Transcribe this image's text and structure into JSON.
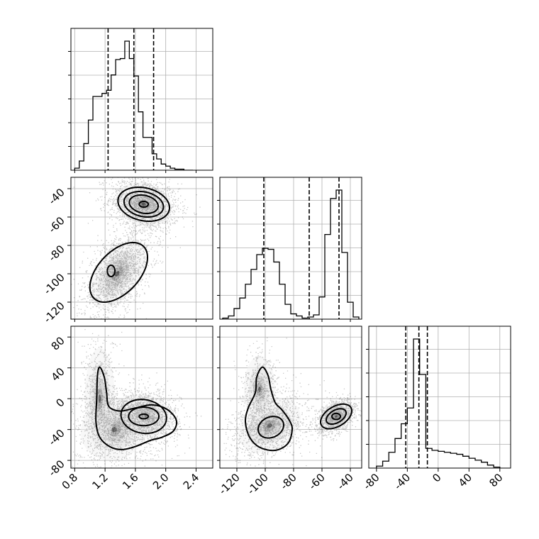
{
  "chart_data": {
    "type": "corner",
    "grid": true,
    "dashed_quantiles": [
      [
        1.24,
        1.58,
        1.84
      ],
      [
        -101,
        -69,
        -48
      ],
      [
        -42,
        -25,
        -14
      ]
    ],
    "ranges": [
      [
        0.75,
        2.62
      ],
      [
        -132,
        -32
      ],
      [
        -90,
        94
      ]
    ],
    "ticks": [
      [
        "0.8",
        "1.2",
        "1.6",
        "2.0",
        "2.4"
      ],
      [
        "-120",
        "-100",
        "-80",
        "-60",
        "-40"
      ],
      [
        "-80",
        "-40",
        "0",
        "40",
        "80"
      ]
    ],
    "histograms": [
      {
        "bin_edges": [
          0.8,
          0.86,
          0.92,
          0.98,
          1.04,
          1.1,
          1.16,
          1.22,
          1.28,
          1.34,
          1.4,
          1.46,
          1.52,
          1.58,
          1.64,
          1.7,
          1.76,
          1.82,
          1.88,
          1.94,
          2.0,
          2.06,
          2.12,
          2.18,
          2.24,
          2.3,
          2.36
        ],
        "counts": [
          2,
          9,
          26,
          49,
          72,
          72,
          75,
          78,
          93,
          108,
          109,
          126,
          109,
          92,
          57,
          32,
          32,
          16,
          11,
          6,
          4,
          2,
          1,
          1,
          0,
          0
        ]
      },
      {
        "bin_edges": [
          -130,
          -126,
          -122,
          -118,
          -114,
          -110,
          -106,
          -102,
          -98,
          -94,
          -90,
          -86,
          -82,
          -78,
          -74,
          -70,
          -66,
          -62,
          -58,
          -54,
          -50,
          -46,
          -42,
          -38,
          -34
        ],
        "counts": [
          1,
          3,
          10,
          20,
          33,
          47,
          61,
          67,
          66,
          54,
          33,
          14,
          5,
          3,
          1,
          2,
          4,
          21,
          80,
          114,
          122,
          63,
          16,
          2
        ]
      },
      {
        "bin_edges": [
          -80,
          -72,
          -64,
          -56,
          -48,
          -40,
          -32,
          -24,
          -16,
          -8,
          0,
          8,
          16,
          24,
          32,
          40,
          48,
          56,
          64,
          72,
          80
        ],
        "counts": [
          2,
          7,
          16,
          30,
          45,
          61,
          131,
          95,
          20,
          18,
          17,
          16,
          15,
          14,
          12,
          10,
          8,
          6,
          3,
          1
        ]
      }
    ],
    "pairs": [
      {
        "x": 0,
        "y": 1,
        "clusters": [
          {
            "cx": 1.71,
            "cy": -51,
            "sx": 0.17,
            "sy": 7,
            "rho": -0.2,
            "n": 1600
          },
          {
            "cx": 1.36,
            "cy": -100,
            "sx": 0.17,
            "sy": 11,
            "rho": 0.5,
            "n": 1600
          }
        ],
        "contours": [
          {
            "cx": 1.71,
            "cy": -51,
            "rx": 0.34,
            "ry": 12,
            "rho": -0.2
          },
          {
            "cx": 1.71,
            "cy": -51,
            "rx": 0.26,
            "ry": 9,
            "rho": -0.2
          },
          {
            "cx": 1.71,
            "cy": -51,
            "rx": 0.19,
            "ry": 6.5,
            "rho": -0.2
          },
          {
            "cx": 1.71,
            "cy": -51,
            "rx": 0.06,
            "ry": 2,
            "rho": 0
          },
          {
            "cx": 1.38,
            "cy": -99,
            "rx": 0.38,
            "ry": 21,
            "rho": 0.5
          },
          {
            "cx": 1.28,
            "cy": -98,
            "rx": 0.05,
            "ry": 4,
            "rho": 0
          }
        ]
      },
      {
        "x": 0,
        "y": 2,
        "clusters": [
          {
            "cx": 1.71,
            "cy": -23,
            "sx": 0.17,
            "sy": 13,
            "rho": -0.1,
            "n": 1500
          },
          {
            "cx": 1.32,
            "cy": -40,
            "sx": 0.2,
            "sy": 18,
            "rho": 0.1,
            "n": 900
          },
          {
            "cx": 1.13,
            "cy": 0,
            "sx": 0.09,
            "sy": 30,
            "rho": 0,
            "n": 700
          }
        ],
        "contours": [
          {
            "cx": 1.71,
            "cy": -23,
            "rx": 0.3,
            "ry": 22,
            "rho": -0.1
          },
          {
            "cx": 1.71,
            "cy": -23,
            "rx": 0.2,
            "ry": 12,
            "rho": 0
          },
          {
            "cx": 1.71,
            "cy": -23,
            "rx": 0.06,
            "ry": 3,
            "rho": 0
          }
        ],
        "outer_contour": [
          [
            1.13,
            41
          ],
          [
            1.19,
            28
          ],
          [
            1.22,
            8
          ],
          [
            1.25,
            -10
          ],
          [
            1.4,
            -16
          ],
          [
            1.6,
            -12
          ],
          [
            1.82,
            -8
          ],
          [
            2.02,
            -14
          ],
          [
            2.14,
            -28
          ],
          [
            2.1,
            -42
          ],
          [
            1.95,
            -50
          ],
          [
            1.8,
            -54
          ],
          [
            1.6,
            -62
          ],
          [
            1.42,
            -66
          ],
          [
            1.26,
            -62
          ],
          [
            1.13,
            -50
          ],
          [
            1.08,
            -30
          ],
          [
            1.09,
            0
          ],
          [
            1.1,
            30
          ]
        ]
      },
      {
        "x": 1,
        "y": 2,
        "clusters": [
          {
            "cx": -97,
            "cy": -35,
            "sx": 10,
            "sy": 16,
            "rho": 0.3,
            "n": 1300
          },
          {
            "cx": -104,
            "cy": 12,
            "sx": 5,
            "sy": 20,
            "rho": 0,
            "n": 500
          },
          {
            "cx": -50,
            "cy": -23,
            "sx": 5,
            "sy": 8,
            "rho": 0.4,
            "n": 1300
          }
        ],
        "contours": [
          {
            "cx": -50,
            "cy": -23,
            "rx": 11,
            "ry": 16,
            "rho": 0.45
          },
          {
            "cx": -50,
            "cy": -23,
            "rx": 7,
            "ry": 10,
            "rho": 0.45
          },
          {
            "cx": -50,
            "cy": -23,
            "rx": 3,
            "ry": 4,
            "rho": 0
          },
          {
            "cx": -96,
            "cy": -37,
            "rx": 9,
            "ry": 14,
            "rho": 0.2
          }
        ],
        "outer_contour": [
          [
            -102,
            41
          ],
          [
            -98,
            30
          ],
          [
            -96,
            12
          ],
          [
            -93,
            -5
          ],
          [
            -88,
            -15
          ],
          [
            -83,
            -28
          ],
          [
            -81,
            -40
          ],
          [
            -84,
            -58
          ],
          [
            -93,
            -67
          ],
          [
            -104,
            -63
          ],
          [
            -111,
            -50
          ],
          [
            -114,
            -30
          ],
          [
            -112,
            -12
          ],
          [
            -107,
            8
          ],
          [
            -106,
            28
          ]
        ]
      }
    ]
  }
}
